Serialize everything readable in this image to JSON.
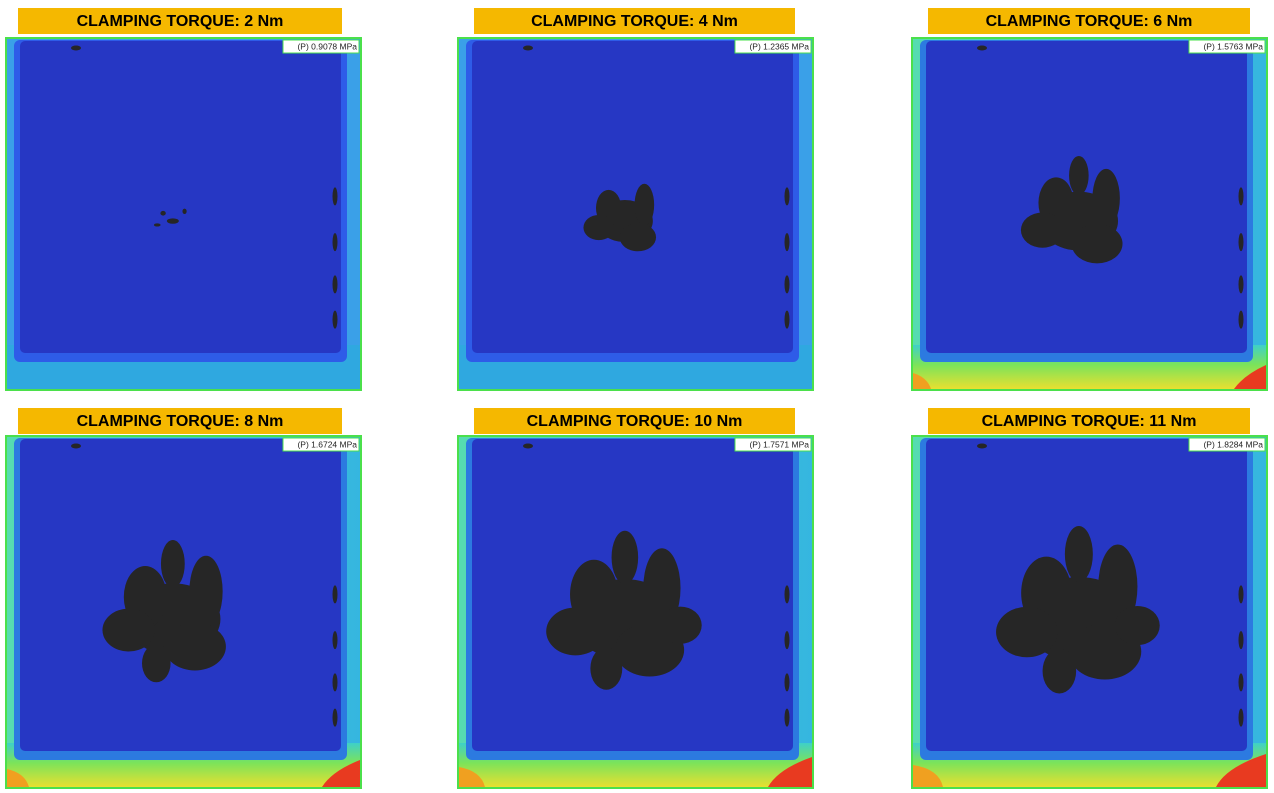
{
  "panels": [
    {
      "title": "CLAMPING TORQUE: 2 Nm",
      "peak": "(P) 0.9078 MPa"
    },
    {
      "title": "CLAMPING TORQUE: 4 Nm",
      "peak": "(P) 1.2365 MPa"
    },
    {
      "title": "CLAMPING TORQUE: 6 Nm",
      "peak": "(P) 1.5763 MPa"
    },
    {
      "title": "CLAMPING TORQUE: 8 Nm",
      "peak": "(P) 1.6724 MPa"
    },
    {
      "title": "CLAMPING TORQUE: 10 Nm",
      "peak": "(P) 1.7571 MPa"
    },
    {
      "title": "CLAMPING TORQUE: 11 Nm",
      "peak": "(P) 1.8284 MPa"
    }
  ]
}
